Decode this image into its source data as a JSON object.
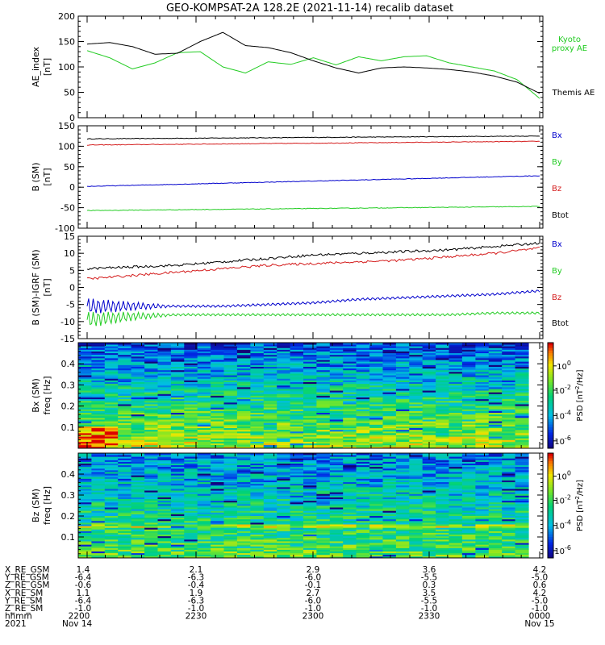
{
  "title": "GEO-KOMPSAT-2A 128.2E (2021-11-14) recalib dataset",
  "colors": {
    "black": "#000000",
    "red": "#d41c1c",
    "green": "#22cc22",
    "blue": "#0000cc",
    "kyoto": "#22cc22"
  },
  "chart_data": [
    {
      "type": "line",
      "ylabel": "AE_index",
      "yunit": "[nT]",
      "ylim": [
        0,
        200
      ],
      "yticks": [
        0,
        50,
        100,
        150,
        200
      ],
      "x": [
        2200,
        2230,
        2300,
        2330,
        0
      ],
      "series": [
        {
          "name": "Kyoto proxy AE",
          "color": "#22cc22",
          "x": [
            0,
            0.05,
            0.1,
            0.15,
            0.2,
            0.25,
            0.3,
            0.35,
            0.4,
            0.45,
            0.5,
            0.55,
            0.6,
            0.65,
            0.7,
            0.75,
            0.8,
            0.85,
            0.9,
            0.95,
            1.0
          ],
          "values": [
            132,
            118,
            96,
            108,
            128,
            130,
            100,
            88,
            110,
            105,
            118,
            104,
            120,
            112,
            120,
            122,
            108,
            100,
            92,
            75,
            38
          ]
        },
        {
          "name": "Themis AE",
          "color": "#000000",
          "x": [
            0,
            0.05,
            0.1,
            0.15,
            0.2,
            0.25,
            0.3,
            0.35,
            0.4,
            0.45,
            0.5,
            0.55,
            0.6,
            0.65,
            0.7,
            0.75,
            0.8,
            0.85,
            0.9,
            0.95,
            1.0
          ],
          "values": [
            145,
            148,
            140,
            125,
            127,
            150,
            168,
            142,
            138,
            128,
            112,
            98,
            88,
            98,
            100,
            98,
            95,
            90,
            82,
            70,
            48
          ]
        }
      ],
      "legend": [
        {
          "label": "Kyoto",
          "color": "#22cc22"
        },
        {
          "label": "proxy AE",
          "color": "#22cc22"
        },
        {
          "label": "Themis AE",
          "color": "#000000"
        }
      ]
    },
    {
      "type": "line",
      "ylabel": "B (SM)",
      "yunit": "[nT]",
      "ylim": [
        -100,
        150
      ],
      "yticks": [
        -100,
        -50,
        0,
        50,
        100,
        150
      ],
      "series": [
        {
          "name": "Btot",
          "color": "#000000",
          "x": [
            0,
            1
          ],
          "values": [
            118,
            125
          ]
        },
        {
          "name": "Bz",
          "color": "#d41c1c",
          "x": [
            0,
            1
          ],
          "values": [
            103,
            112
          ]
        },
        {
          "name": "Bx",
          "color": "#0000cc",
          "x": [
            0,
            1
          ],
          "values": [
            2,
            28
          ]
        },
        {
          "name": "By",
          "color": "#22cc22",
          "x": [
            0,
            1
          ],
          "values": [
            -57,
            -47
          ]
        }
      ],
      "legend": [
        {
          "label": "Bx",
          "color": "#0000cc"
        },
        {
          "label": "By",
          "color": "#22cc22"
        },
        {
          "label": "Bz",
          "color": "#d41c1c"
        },
        {
          "label": "Btot",
          "color": "#000000"
        }
      ]
    },
    {
      "type": "line",
      "ylabel": "B (SM)-IGRF (SM)",
      "yunit": "[nT]",
      "ylim": [
        -15,
        15
      ],
      "yticks": [
        -15,
        -10,
        -5,
        0,
        5,
        10,
        15
      ],
      "series": [
        {
          "name": "Btot",
          "color": "#000000",
          "x": [
            0,
            0.1,
            0.2,
            0.3,
            0.4,
            0.5,
            0.6,
            0.7,
            0.8,
            0.9,
            1.0
          ],
          "values": [
            5.5,
            6.0,
            6.5,
            7.5,
            8.5,
            9.5,
            10.0,
            10.5,
            11.0,
            12.0,
            13.0
          ]
        },
        {
          "name": "Bz",
          "color": "#d41c1c",
          "x": [
            0,
            0.1,
            0.2,
            0.3,
            0.4,
            0.5,
            0.6,
            0.7,
            0.8,
            0.9,
            1.0
          ],
          "values": [
            2.5,
            3.5,
            4.5,
            5.5,
            6.5,
            7.0,
            7.5,
            8.0,
            9.0,
            10.0,
            11.5
          ]
        },
        {
          "name": "Bx",
          "color": "#0000cc",
          "x": [
            0,
            0.1,
            0.2,
            0.3,
            0.4,
            0.5,
            0.6,
            0.7,
            0.8,
            0.9,
            1.0
          ],
          "values": [
            -5.5,
            -5.5,
            -5.5,
            -5.5,
            -5.0,
            -4.5,
            -3.5,
            -3.0,
            -2.5,
            -2.0,
            -1.0
          ]
        },
        {
          "name": "By",
          "color": "#22cc22",
          "x": [
            0,
            0.1,
            0.2,
            0.3,
            0.4,
            0.5,
            0.6,
            0.7,
            0.8,
            0.9,
            1.0
          ],
          "values": [
            -9.5,
            -8.5,
            -8.0,
            -8.0,
            -8.0,
            -8.0,
            -8.0,
            -8.0,
            -8.0,
            -7.5,
            -7.5
          ]
        }
      ],
      "legend": [
        {
          "label": "Bx",
          "color": "#0000cc"
        },
        {
          "label": "By",
          "color": "#22cc22"
        },
        {
          "label": "Bz",
          "color": "#d41c1c"
        },
        {
          "label": "Btot",
          "color": "#000000"
        }
      ]
    },
    {
      "type": "heatmap",
      "ylabel": "Bx (SM)",
      "yunit": "freq [Hz]",
      "ylim": [
        0,
        0.5
      ],
      "yticks": [
        0.1,
        0.2,
        0.3,
        0.4
      ],
      "colorbar": {
        "label": "PSD [nT",
        "unit": "/Hz]",
        "ticks": [
          {
            "base": "10",
            "exp": "0"
          },
          {
            "base": "10",
            "exp": "-2"
          },
          {
            "base": "10",
            "exp": "-4"
          },
          {
            "base": "10",
            "exp": "-6"
          }
        ]
      }
    },
    {
      "type": "heatmap",
      "ylabel": "Bz (SM)",
      "yunit": "freq [Hz]",
      "ylim": [
        0,
        0.5
      ],
      "yticks": [
        0.1,
        0.2,
        0.3,
        0.4
      ],
      "colorbar": {
        "label": "PSD [nT",
        "unit": "/Hz]",
        "ticks": [
          {
            "base": "10",
            "exp": "0"
          },
          {
            "base": "10",
            "exp": "-2"
          },
          {
            "base": "10",
            "exp": "-4"
          },
          {
            "base": "10",
            "exp": "-6"
          }
        ]
      }
    }
  ],
  "orbit_table": {
    "rows": [
      {
        "label": "X_RE_GSM",
        "values": [
          "1.4",
          "2.1",
          "2.9",
          "3.6",
          "4.2"
        ]
      },
      {
        "label": "Y_RE_GSM",
        "values": [
          "-6.4",
          "-6.3",
          "-6.0",
          "-5.5",
          "-5.0"
        ]
      },
      {
        "label": "Z_RE_GSM",
        "values": [
          "-0.6",
          "-0.4",
          "-0.1",
          "0.3",
          "0.6"
        ]
      },
      {
        "label": "X_RE_SM",
        "values": [
          "1.1",
          "1.9",
          "2.7",
          "3.5",
          "4.2"
        ]
      },
      {
        "label": "Y_RE_SM",
        "values": [
          "-6.4",
          "-6.3",
          "-6.0",
          "-5.5",
          "-5.0"
        ]
      },
      {
        "label": "Z_RE_SM",
        "values": [
          "-1.0",
          "-1.0",
          "-1.0",
          "-1.0",
          "-1.0"
        ]
      },
      {
        "label": "hhmm",
        "values": [
          "2200",
          "2230",
          "2300",
          "2330",
          "0000"
        ]
      },
      {
        "label": "2021",
        "values": [
          "Nov 14",
          "",
          "",
          "",
          "Nov 15"
        ]
      }
    ]
  }
}
